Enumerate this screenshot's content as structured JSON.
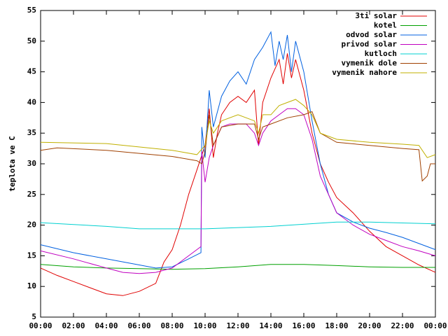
{
  "chart_data": {
    "type": "line",
    "ylabel": "teplota ve C",
    "xlim": [
      0,
      24
    ],
    "xticks": [
      {
        "value": 0,
        "label": "00:00"
      },
      {
        "value": 2,
        "label": "02:00"
      },
      {
        "value": 4,
        "label": "04:00"
      },
      {
        "value": 6,
        "label": "06:00"
      },
      {
        "value": 8,
        "label": "08:00"
      },
      {
        "value": 10,
        "label": "10:00"
      },
      {
        "value": 12,
        "label": "12:00"
      },
      {
        "value": 14,
        "label": "14:00"
      },
      {
        "value": 16,
        "label": "16:00"
      },
      {
        "value": 18,
        "label": "18:00"
      },
      {
        "value": 20,
        "label": "20:00"
      },
      {
        "value": 22,
        "label": "22:00"
      },
      {
        "value": 24,
        "label": "00:00"
      }
    ],
    "ylim": [
      5,
      55
    ],
    "yticks": [
      5,
      10,
      15,
      20,
      25,
      30,
      35,
      40,
      45,
      50,
      55
    ],
    "legend": "top-right",
    "series": [
      {
        "name": "3ti solar",
        "color": "#e00000",
        "x": [
          0,
          1,
          2,
          3,
          4,
          5,
          6,
          7,
          7.5,
          8,
          8.5,
          9,
          9.5,
          9.75,
          10,
          10.25,
          10.5,
          10.75,
          11,
          11.5,
          12,
          12.5,
          13,
          13.25,
          13.5,
          14,
          14.5,
          14.75,
          15,
          15.25,
          15.5,
          16,
          16.5,
          17,
          17.5,
          18,
          19,
          20,
          21,
          22,
          23,
          24
        ],
        "values": [
          13,
          11.8,
          10.8,
          9.8,
          8.8,
          8.5,
          9.2,
          10.5,
          14,
          16,
          20,
          25,
          29,
          31,
          33,
          39,
          31,
          35,
          38,
          40,
          41,
          40,
          42,
          33,
          40,
          44,
          47,
          43,
          48,
          44,
          47,
          42,
          35,
          30,
          27,
          24.5,
          22,
          19,
          16.5,
          15,
          13.5,
          12.3
        ]
      },
      {
        "name": "kotel",
        "color": "#00a000",
        "x": [
          0,
          2,
          4,
          6,
          8,
          10,
          12,
          14,
          16,
          18,
          20,
          22,
          24
        ],
        "values": [
          13.6,
          13.2,
          13,
          12.9,
          12.8,
          12.9,
          13.2,
          13.6,
          13.6,
          13.4,
          13.2,
          13.1,
          13.1
        ]
      },
      {
        "name": "odvod solar",
        "color": "#0060e0",
        "x": [
          0,
          2,
          4,
          6,
          7,
          8,
          9,
          9.75,
          9.8,
          10,
          10.25,
          10.5,
          11,
          11.5,
          12,
          12.5,
          13,
          13.5,
          14,
          14.25,
          14.5,
          14.75,
          15,
          15.25,
          15.5,
          16,
          16.5,
          17,
          17.5,
          18,
          19,
          20,
          21,
          22,
          23,
          24
        ],
        "values": [
          16.8,
          15.5,
          14.5,
          13.5,
          13,
          13.2,
          14.5,
          15.5,
          36,
          31,
          42,
          36,
          41,
          43.5,
          45,
          43,
          47,
          49,
          51.5,
          46,
          50,
          47,
          51,
          45,
          50,
          45,
          37,
          30,
          25,
          22,
          20.5,
          19.5,
          18.8,
          18,
          17,
          16
        ]
      },
      {
        "name": "privod solar",
        "color": "#c000c0",
        "x": [
          0,
          2,
          4,
          5,
          6,
          7,
          8,
          9,
          9.75,
          9.8,
          10,
          10.25,
          10.5,
          11,
          11.5,
          12,
          12.5,
          13,
          13.25,
          13.5,
          14,
          14.5,
          15,
          15.5,
          16,
          16.5,
          17,
          17.5,
          18,
          19,
          20,
          21,
          22,
          23,
          24
        ],
        "values": [
          15.8,
          14.5,
          13,
          12.3,
          12.1,
          12.3,
          13,
          15,
          16.5,
          32,
          27,
          31,
          33,
          36,
          36.5,
          36.5,
          36.5,
          35,
          33,
          35,
          37,
          38,
          39,
          39,
          38,
          34,
          28,
          25,
          22,
          20,
          18.5,
          17.5,
          16.5,
          15.8,
          15
        ]
      },
      {
        "name": "kutloch",
        "color": "#00d0d0",
        "x": [
          0,
          4,
          6,
          10,
          14,
          18,
          20,
          24
        ],
        "values": [
          20.4,
          19.8,
          19.4,
          19.4,
          19.8,
          20.5,
          20.5,
          20.2
        ]
      },
      {
        "name": "vymenik dole",
        "color": "#a04000",
        "x": [
          0,
          1,
          4,
          8,
          9.5,
          9.8,
          10,
          10.25,
          10.5,
          11,
          12,
          13,
          13.25,
          13.5,
          14,
          15,
          16,
          16.5,
          17,
          18,
          20,
          22,
          23,
          23.2,
          23.5,
          23.7,
          24
        ],
        "values": [
          32.2,
          32.6,
          32.2,
          31.2,
          30.5,
          30,
          32,
          38,
          33,
          36,
          36.5,
          36.5,
          34,
          36,
          36.5,
          37.5,
          38,
          38.5,
          35,
          33.5,
          33,
          32.5,
          32.3,
          27.2,
          28,
          30,
          30
        ]
      },
      {
        "name": "vymenik nahore",
        "color": "#c0b000",
        "x": [
          0,
          4,
          8,
          9.5,
          10,
          10.25,
          10.5,
          11,
          12,
          13,
          13.25,
          13.5,
          14,
          14.5,
          15,
          15.5,
          16,
          16.5,
          17,
          18,
          20,
          22,
          23,
          23.5,
          24
        ],
        "values": [
          33.5,
          33.3,
          32.2,
          31.5,
          33,
          37,
          35,
          37,
          38,
          37,
          35,
          38,
          38,
          39.5,
          40,
          40.5,
          39.5,
          38,
          35,
          34,
          33.5,
          33.2,
          33,
          31,
          31.5
        ]
      }
    ]
  }
}
